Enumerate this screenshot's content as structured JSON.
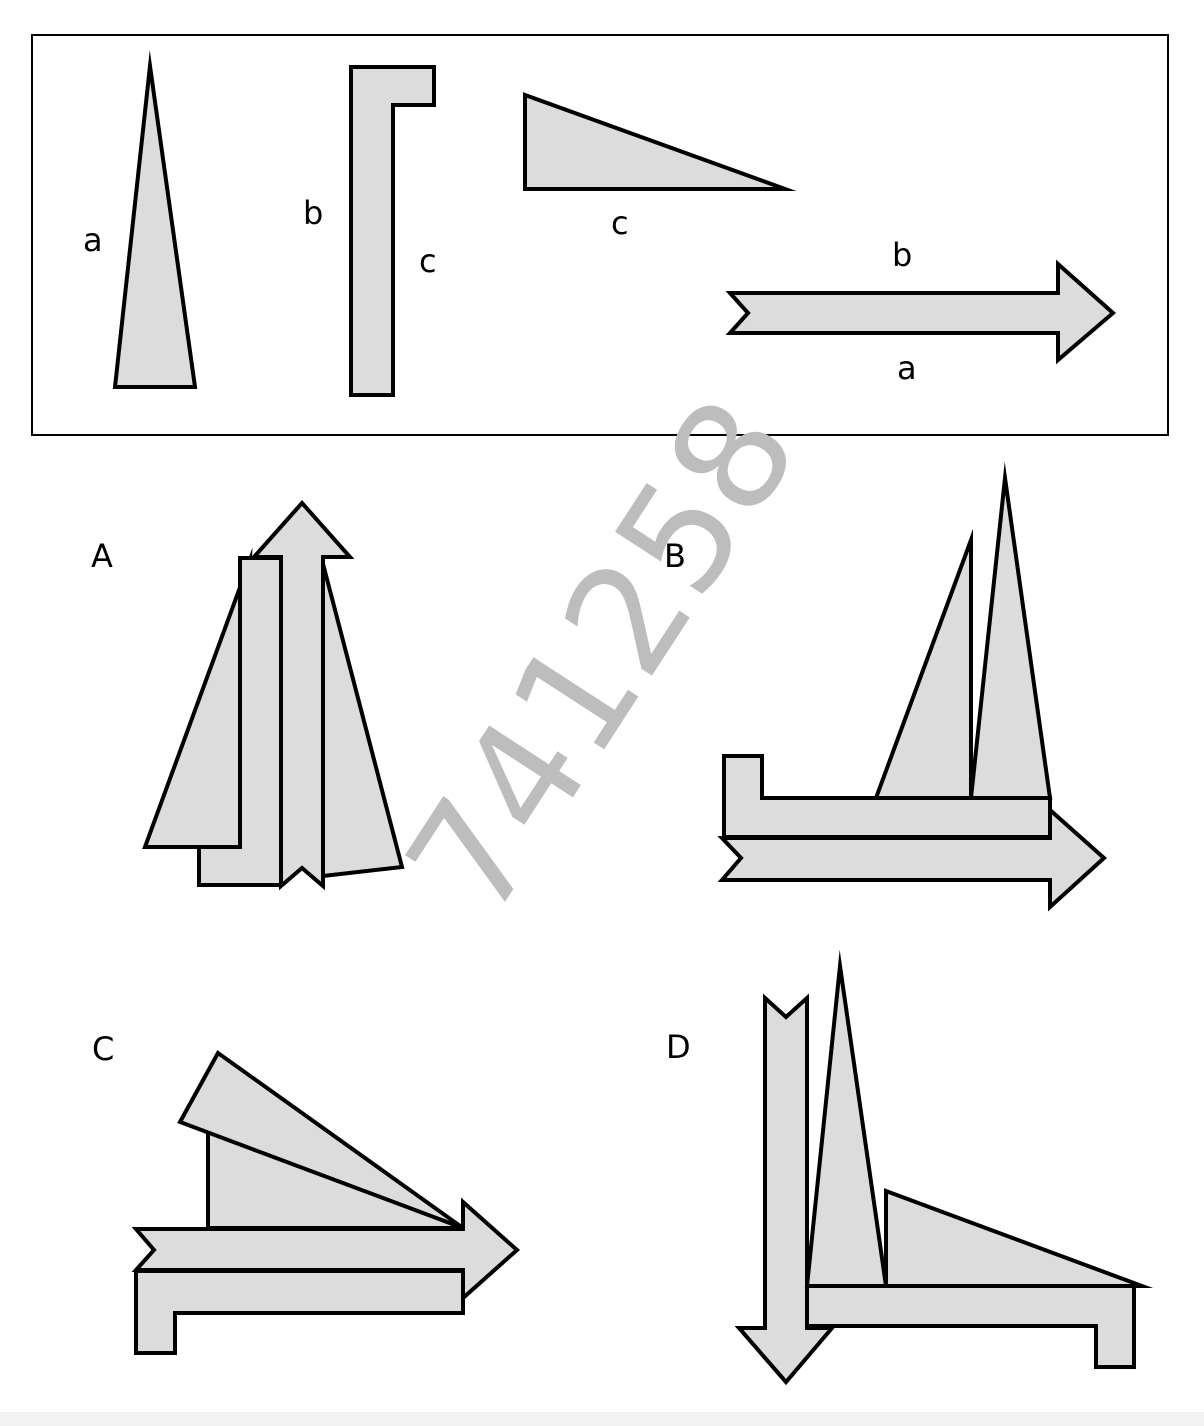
{
  "diagram": {
    "colors": {
      "shape_fill": "#dcdcdc",
      "stroke": "#000000",
      "watermark": "#bdbdbd"
    },
    "legend_labels": {
      "triangle_side": "a",
      "l_bar_outer_side": "b",
      "l_bar_inner_side": "c",
      "right_triangle_base": "c",
      "arrow_top_side": "b",
      "arrow_bottom_side": "a"
    },
    "options": [
      {
        "label": "A"
      },
      {
        "label": "B"
      },
      {
        "label": "C"
      },
      {
        "label": "D"
      }
    ],
    "watermark": "741258"
  }
}
